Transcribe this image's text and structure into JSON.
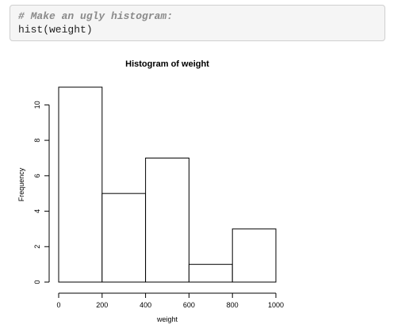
{
  "code_cell": {
    "comment": "# Make an ugly histogram:",
    "command": "hist(weight)"
  },
  "colors": {
    "code_background": "#f5f5f5",
    "comment_text": "#8a8a8a",
    "bar_fill": "#ffffff",
    "bar_stroke": "#000000"
  },
  "chart_data": {
    "type": "bar",
    "title": "Histogram of weight",
    "xlabel": "weight",
    "ylabel": "Frequency",
    "bins": [
      [
        0,
        200
      ],
      [
        200,
        400
      ],
      [
        400,
        600
      ],
      [
        600,
        800
      ],
      [
        800,
        1000
      ]
    ],
    "categories": [
      "0-200",
      "200-400",
      "400-600",
      "600-800",
      "800-1000"
    ],
    "values": [
      11,
      5,
      7,
      1,
      3
    ],
    "xlim": [
      0,
      1000
    ],
    "ylim": [
      0,
      11
    ],
    "xticks": [
      "0",
      "200",
      "400",
      "600",
      "800",
      "1000"
    ],
    "yticks": [
      "0",
      "2",
      "4",
      "6",
      "8",
      "10"
    ],
    "grid": false,
    "legend": "none"
  }
}
